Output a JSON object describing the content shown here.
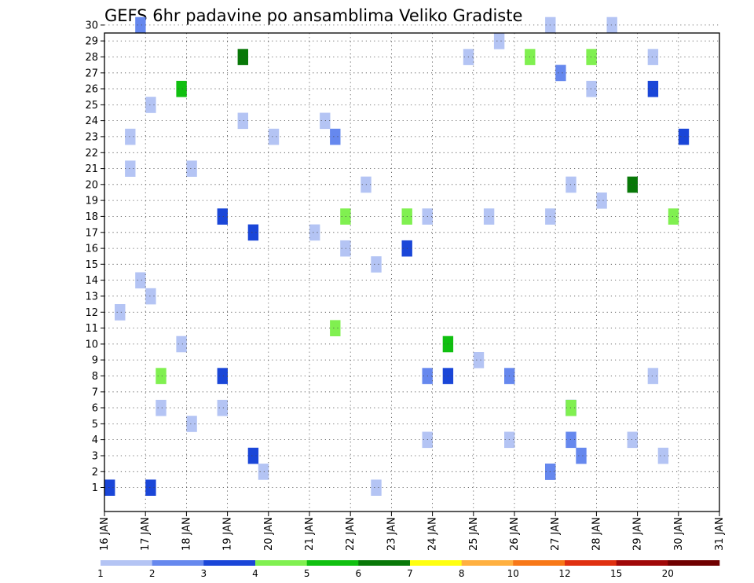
{
  "chart_data": {
    "type": "heatmap",
    "title": "GEFS 6hr padavine po ansamblima Veliko Gradiste",
    "y_labels": [
      "1",
      "2",
      "3",
      "4",
      "5",
      "6",
      "7",
      "8",
      "9",
      "10",
      "11",
      "12",
      "13",
      "14",
      "15",
      "16",
      "17",
      "18",
      "19",
      "20",
      "21",
      "22",
      "23",
      "24",
      "25",
      "26",
      "27",
      "28",
      "29",
      "30"
    ],
    "x_labels": [
      "16 JAN",
      "17 JAN",
      "18 JAN",
      "19 JAN",
      "20 JAN",
      "21 JAN",
      "22 JAN",
      "23 JAN",
      "24 JAN",
      "25 JAN",
      "26 JAN",
      "27 JAN",
      "28 JAN",
      "29 JAN",
      "30 JAN",
      "31 JAN"
    ],
    "time_steps": 60,
    "grid": "dotted",
    "colorbar": {
      "levels": [
        "1",
        "2",
        "3",
        "4",
        "5",
        "6",
        "7",
        "8",
        "10",
        "12",
        "15",
        "20"
      ],
      "colors": [
        "#b4c4f4",
        "#6688ee",
        "#1a46d8",
        "#80f050",
        "#10c010",
        "#087808",
        "#ffff10",
        "#ffb040",
        "#f87818",
        "#e03010",
        "#a00808",
        "#700000"
      ]
    },
    "legend": "bottom",
    "cells": [
      [
        8,
        2
      ],
      [
        17,
        2
      ],
      [
        18,
        1
      ],
      [
        19,
        2
      ],
      [
        35,
        4
      ],
      [
        36,
        6
      ],
      [
        37,
        2
      ],
      [
        40,
        1
      ],
      [
        48,
        3
      ],
      [
        49,
        4
      ],
      [
        51,
        1
      ],
      [
        52,
        3
      ],
      [
        53,
        4
      ],
      [
        54,
        4
      ],
      [
        55,
        4
      ],
      [
        56,
        4
      ],
      [
        57,
        4
      ],
      [
        61,
        1
      ],
      [
        61,
        3
      ],
      [
        62,
        1
      ],
      [
        65,
        3
      ],
      [
        71,
        1
      ],
      [
        72,
        1
      ],
      [
        79,
        1
      ],
      [
        81,
        5
      ],
      [
        82,
        6
      ],
      [
        82,
        3
      ],
      [
        83,
        3
      ],
      [
        89,
        1
      ],
      [
        91,
        1
      ],
      [
        92,
        1
      ],
      [
        96,
        1
      ],
      [
        98,
        1
      ],
      [
        106,
        2
      ],
      [
        107,
        1
      ],
      [
        110,
        4
      ],
      [
        112,
        1
      ],
      [
        118,
        2
      ],
      [
        122,
        1
      ],
      [
        124,
        5
      ],
      [
        131,
        1
      ],
      [
        136,
        3
      ],
      [
        137,
        1
      ],
      [
        138,
        3
      ],
      [
        139,
        1
      ],
      [
        140,
        1
      ],
      [
        143,
        1
      ],
      [
        145,
        1
      ],
      [
        147,
        1
      ],
      [
        150,
        1
      ],
      [
        151,
        1
      ],
      [
        152,
        3
      ],
      [
        161,
        1
      ],
      [
        162,
        1
      ],
      [
        164,
        1
      ],
      [
        166,
        3
      ],
      [
        168,
        1
      ],
      [
        171,
        1
      ],
      [
        175,
        1
      ],
      [
        176,
        2
      ],
      [
        180,
        3
      ],
      [
        182,
        1
      ],
      [
        189,
        1
      ],
      [
        190,
        1
      ],
      [
        191,
        1
      ],
      [
        193,
        3
      ],
      [
        195,
        2
      ],
      [
        196,
        1
      ],
      [
        197,
        1
      ],
      [
        198,
        1
      ]
    ]
  }
}
